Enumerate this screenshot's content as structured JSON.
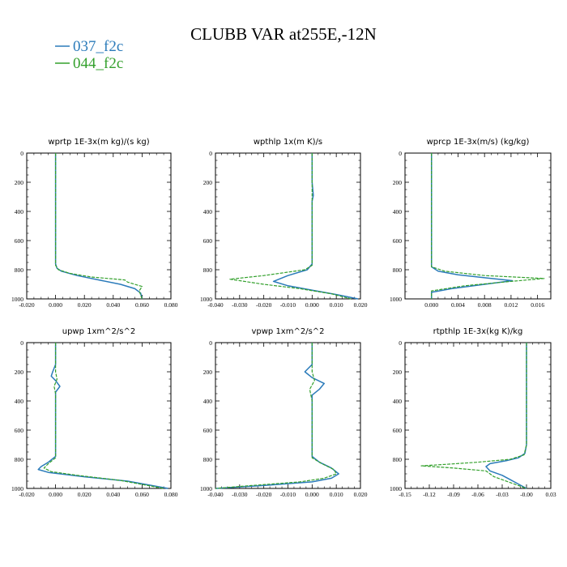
{
  "figure": {
    "title": "CLUBB VAR at255E,-12N"
  },
  "legend": [
    {
      "name": "037_f2c",
      "color": "#2b7bba",
      "dash": "solid"
    },
    {
      "name": "044_f2c",
      "color": "#33a02c",
      "dash": "dashed"
    }
  ],
  "chart_data": [
    {
      "type": "line",
      "title": "wprtp  1E-3x(m kg)/(s kg)",
      "xlim": [
        -0.02,
        0.08
      ],
      "ylim": [
        0,
        1000
      ],
      "y_inverted": true,
      "xticks": [
        -0.02,
        0,
        0.02,
        0.04,
        0.06,
        0.08
      ],
      "xtick_labels": [
        "-0.020",
        "0.000",
        "0.020",
        "0.040",
        "0.060",
        "0.080"
      ],
      "yticks": [
        0,
        200,
        400,
        600,
        800,
        1000
      ],
      "series": [
        {
          "name": "037_f2c",
          "points": [
            [
              0,
              0
            ],
            [
              0,
              200
            ],
            [
              0,
              400
            ],
            [
              0,
              600
            ],
            [
              0,
              760
            ],
            [
              0.001,
              790
            ],
            [
              0.004,
              810
            ],
            [
              0.015,
              840
            ],
            [
              0.03,
              870
            ],
            [
              0.045,
              900
            ],
            [
              0.055,
              930
            ],
            [
              0.059,
              960
            ],
            [
              0.06,
              1000
            ]
          ]
        },
        {
          "name": "044_f2c",
          "points": [
            [
              0,
              0
            ],
            [
              0,
              200
            ],
            [
              0,
              400
            ],
            [
              0,
              600
            ],
            [
              0,
              770
            ],
            [
              0.002,
              800
            ],
            [
              0.01,
              825
            ],
            [
              0.025,
              850
            ],
            [
              0.048,
              870
            ],
            [
              0.05,
              885
            ],
            [
              0.06,
              915
            ],
            [
              0.058,
              945
            ],
            [
              0.06,
              1000
            ]
          ]
        }
      ]
    },
    {
      "type": "line",
      "title": "wpthlp  1x(m K)/s",
      "xlim": [
        -0.04,
        0.02
      ],
      "ylim": [
        0,
        1000
      ],
      "y_inverted": true,
      "xticks": [
        -0.04,
        -0.03,
        -0.02,
        -0.01,
        0,
        0.01,
        0.02
      ],
      "xtick_labels": [
        "-0.040",
        "-0.030",
        "-0.020",
        "-0.010",
        "0.000",
        "0.010",
        "0.020"
      ],
      "yticks": [
        0,
        200,
        400,
        600,
        800,
        1000
      ],
      "series": [
        {
          "name": "037_f2c",
          "points": [
            [
              0,
              0
            ],
            [
              0,
              200
            ],
            [
              0.0005,
              290
            ],
            [
              0,
              330
            ],
            [
              0,
              600
            ],
            [
              0,
              760
            ],
            [
              -0.002,
              800
            ],
            [
              -0.01,
              840
            ],
            [
              -0.016,
              880
            ],
            [
              -0.01,
              910
            ],
            [
              0,
              940
            ],
            [
              0.01,
              970
            ],
            [
              0.019,
              1000
            ]
          ]
        },
        {
          "name": "044_f2c",
          "points": [
            [
              0,
              0
            ],
            [
              0,
              200
            ],
            [
              0,
              600
            ],
            [
              0,
              770
            ],
            [
              -0.003,
              800
            ],
            [
              -0.02,
              840
            ],
            [
              -0.034,
              865
            ],
            [
              -0.02,
              900
            ],
            [
              -0.005,
              930
            ],
            [
              0.008,
              965
            ],
            [
              0.016,
              1000
            ]
          ]
        }
      ]
    },
    {
      "type": "line",
      "title": "wprcp  1E-3x(m/s) (kg/kg)",
      "xlim": [
        -0.004,
        0.018
      ],
      "ylim": [
        0,
        1000
      ],
      "y_inverted": true,
      "xticks": [
        0,
        0.004,
        0.008,
        0.012,
        0.016
      ],
      "xtick_labels": [
        "0.000",
        "0.004",
        "0.008",
        "0.012",
        "0.016"
      ],
      "yticks": [
        0,
        200,
        400,
        600,
        800,
        1000
      ],
      "series": [
        {
          "name": "037_f2c",
          "points": [
            [
              0,
              0
            ],
            [
              0,
              200
            ],
            [
              0,
              600
            ],
            [
              0,
              780
            ],
            [
              0.001,
              810
            ],
            [
              0.004,
              835
            ],
            [
              0.009,
              860
            ],
            [
              0.0122,
              875
            ],
            [
              0.008,
              900
            ],
            [
              0.003,
              930
            ],
            [
              0,
              955
            ],
            [
              0,
              1000
            ]
          ]
        },
        {
          "name": "044_f2c",
          "points": [
            [
              0,
              0
            ],
            [
              0,
              200
            ],
            [
              0,
              600
            ],
            [
              0,
              780
            ],
            [
              0.002,
              810
            ],
            [
              0.008,
              840
            ],
            [
              0.017,
              860
            ],
            [
              0.012,
              880
            ],
            [
              0.005,
              910
            ],
            [
              0,
              945
            ],
            [
              0,
              1000
            ]
          ]
        }
      ]
    },
    {
      "type": "line",
      "title": "upwp  1xm^2/s^2",
      "xlim": [
        -0.02,
        0.08
      ],
      "ylim": [
        0,
        1000
      ],
      "y_inverted": true,
      "xticks": [
        -0.02,
        0,
        0.02,
        0.04,
        0.06,
        0.08
      ],
      "xtick_labels": [
        "-0.020",
        "0.000",
        "0.020",
        "0.040",
        "0.060",
        "0.080"
      ],
      "yticks": [
        0,
        200,
        400,
        600,
        800,
        1000
      ],
      "series": [
        {
          "name": "037_f2c",
          "points": [
            [
              0,
              0
            ],
            [
              0,
              150
            ],
            [
              -0.002,
              200
            ],
            [
              -0.003,
              230
            ],
            [
              0,
              260
            ],
            [
              0.003,
              300
            ],
            [
              0,
              340
            ],
            [
              0,
              500
            ],
            [
              0,
              700
            ],
            [
              0,
              780
            ],
            [
              -0.005,
              820
            ],
            [
              -0.01,
              850
            ],
            [
              -0.012,
              870
            ],
            [
              -0.005,
              890
            ],
            [
              0.02,
              920
            ],
            [
              0.05,
              950
            ],
            [
              0.078,
              1000
            ]
          ]
        },
        {
          "name": "044_f2c",
          "points": [
            [
              0,
              0
            ],
            [
              0,
              200
            ],
            [
              0.001,
              250
            ],
            [
              -0.001,
              300
            ],
            [
              0,
              350
            ],
            [
              0,
              700
            ],
            [
              0,
              790
            ],
            [
              -0.005,
              830
            ],
            [
              -0.008,
              860
            ],
            [
              -0.003,
              885
            ],
            [
              0.015,
              910
            ],
            [
              0.045,
              945
            ],
            [
              0.075,
              1000
            ]
          ]
        }
      ]
    },
    {
      "type": "line",
      "title": "vpwp  1xm^2/s^2",
      "xlim": [
        -0.04,
        0.02
      ],
      "ylim": [
        0,
        1000
      ],
      "y_inverted": true,
      "xticks": [
        -0.04,
        -0.03,
        -0.02,
        -0.01,
        0,
        0.01,
        0.02
      ],
      "xtick_labels": [
        "-0.040",
        "-0.030",
        "-0.020",
        "-0.010",
        "0.000",
        "0.010",
        "0.020"
      ],
      "yticks": [
        0,
        200,
        400,
        600,
        800,
        1000
      ],
      "series": [
        {
          "name": "037_f2c",
          "points": [
            [
              0,
              0
            ],
            [
              0,
              150
            ],
            [
              -0.003,
              200
            ],
            [
              0,
              240
            ],
            [
              0.005,
              280
            ],
            [
              0.003,
              320
            ],
            [
              0,
              360
            ],
            [
              0,
              700
            ],
            [
              0,
              780
            ],
            [
              0.003,
              820
            ],
            [
              0.008,
              860
            ],
            [
              0.011,
              900
            ],
            [
              0.008,
              930
            ],
            [
              0,
              955
            ],
            [
              -0.02,
              980
            ],
            [
              -0.04,
              1000
            ]
          ]
        },
        {
          "name": "044_f2c",
          "points": [
            [
              0,
              0
            ],
            [
              0,
              200
            ],
            [
              0.001,
              260
            ],
            [
              -0.001,
              320
            ],
            [
              0,
              400
            ],
            [
              0,
              700
            ],
            [
              0,
              790
            ],
            [
              0.004,
              830
            ],
            [
              0.009,
              870
            ],
            [
              0.01,
              900
            ],
            [
              0.005,
              930
            ],
            [
              -0.005,
              955
            ],
            [
              -0.025,
              980
            ],
            [
              -0.04,
              1000
            ]
          ]
        }
      ]
    },
    {
      "type": "line",
      "title": "rtpthlp  1E-3x(kg K)/kg",
      "xlim": [
        -0.15,
        0.03
      ],
      "ylim": [
        0,
        1000
      ],
      "y_inverted": true,
      "xticks": [
        -0.15,
        -0.12,
        -0.09,
        -0.06,
        -0.03,
        0,
        0.03
      ],
      "xtick_labels": [
        "-0.15",
        "-0.12",
        "-0.09",
        "-0.06",
        "-0.03",
        "-0.00",
        "0.03"
      ],
      "yticks": [
        0,
        200,
        400,
        600,
        800,
        1000
      ],
      "series": [
        {
          "name": "037_f2c",
          "points": [
            [
              0,
              0
            ],
            [
              0,
              200
            ],
            [
              0,
              500
            ],
            [
              0,
              700
            ],
            [
              -0.002,
              760
            ],
            [
              -0.01,
              790
            ],
            [
              -0.025,
              810
            ],
            [
              -0.045,
              830
            ],
            [
              -0.05,
              850
            ],
            [
              -0.045,
              880
            ],
            [
              -0.03,
              910
            ],
            [
              -0.02,
              940
            ],
            [
              -0.01,
              970
            ],
            [
              0,
              1000
            ]
          ]
        },
        {
          "name": "044_f2c",
          "points": [
            [
              0,
              0
            ],
            [
              0,
              200
            ],
            [
              0,
              500
            ],
            [
              0,
              700
            ],
            [
              -0.003,
              770
            ],
            [
              -0.02,
              800
            ],
            [
              -0.06,
              820
            ],
            [
              -0.1,
              835
            ],
            [
              -0.13,
              845
            ],
            [
              -0.09,
              860
            ],
            [
              -0.05,
              880
            ],
            [
              -0.04,
              920
            ],
            [
              -0.02,
              960
            ],
            [
              0,
              1000
            ]
          ]
        }
      ]
    }
  ]
}
